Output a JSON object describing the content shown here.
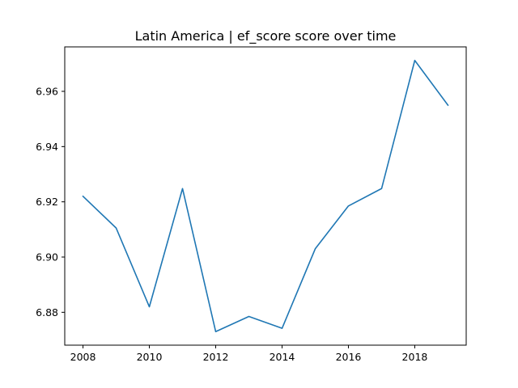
{
  "chart_data": {
    "type": "line",
    "title": "Latin America | ef_score score over time",
    "xlabel": "",
    "ylabel": "",
    "xlim": [
      2007.45,
      2019.55
    ],
    "ylim": [
      6.8681,
      6.9761
    ],
    "x_ticks": [
      2008,
      2010,
      2012,
      2014,
      2016,
      2018
    ],
    "x_tick_labels": [
      "2008",
      "2010",
      "2012",
      "2014",
      "2016",
      "2018"
    ],
    "y_ticks": [
      6.88,
      6.9,
      6.92,
      6.94,
      6.96
    ],
    "y_tick_labels": [
      "6.88",
      "6.90",
      "6.92",
      "6.94",
      "6.96"
    ],
    "grid": false,
    "legend": false,
    "series": [
      {
        "color": "#1f77b4",
        "x": [
          2008,
          2009,
          2010,
          2011,
          2012,
          2013,
          2014,
          2015,
          2016,
          2017,
          2018,
          2019
        ],
        "y": [
          6.922,
          6.9105,
          6.882,
          6.9248,
          6.873,
          6.8785,
          6.8742,
          6.903,
          6.9185,
          6.9248,
          6.9712,
          6.955
        ]
      }
    ]
  }
}
